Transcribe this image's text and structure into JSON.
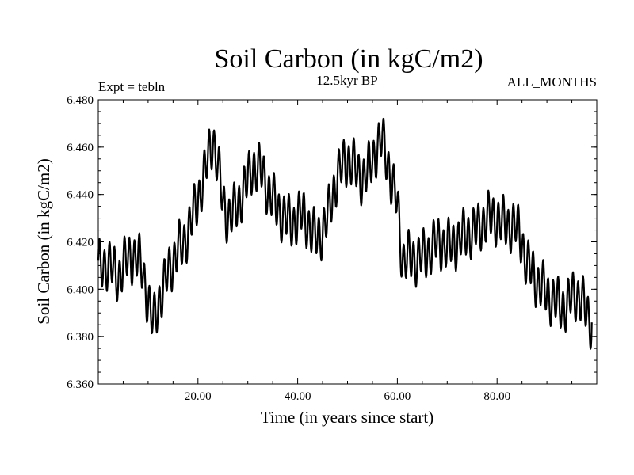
{
  "chart_data": {
    "type": "line",
    "title": "Soil Carbon (in kgC/m2)",
    "subtitle_left": "Expt = tebln",
    "subtitle_center": "12.5kyr BP",
    "subtitle_right": "ALL_MONTHS",
    "xlabel": "Time (in years since start)",
    "ylabel": "Soil Carbon (in kgC/m2)",
    "xlim": [
      0,
      100
    ],
    "ylim": [
      6.36,
      6.48
    ],
    "x_ticks": [
      20,
      40,
      60,
      80
    ],
    "x_tick_labels": [
      "20.00",
      "40.00",
      "60.00",
      "80.00"
    ],
    "y_ticks": [
      6.36,
      6.38,
      6.4,
      6.42,
      6.44,
      6.46,
      6.48
    ],
    "y_tick_labels": [
      "6.360",
      "6.380",
      "6.400",
      "6.420",
      "6.440",
      "6.460",
      "6.480"
    ],
    "grid": false,
    "series": [
      {
        "name": "Soil Carbon",
        "color": "#000000",
        "sampling": "annual mean with seasonal cycle (approx.)",
        "x": [
          0,
          1,
          2,
          3,
          4,
          5,
          6,
          7,
          8,
          9,
          10,
          11,
          12,
          13,
          14,
          15,
          16,
          17,
          18,
          19,
          20,
          21,
          22,
          23,
          24,
          25,
          26,
          27,
          28,
          29,
          30,
          31,
          32,
          33,
          34,
          35,
          36,
          37,
          38,
          39,
          40,
          41,
          42,
          43,
          44,
          45,
          46,
          47,
          48,
          49,
          50,
          51,
          52,
          53,
          54,
          55,
          56,
          57,
          58,
          59,
          60,
          61,
          62,
          63,
          64,
          65,
          66,
          67,
          68,
          69,
          70,
          71,
          72,
          73,
          74,
          75,
          76,
          77,
          78,
          79,
          80,
          81,
          82,
          83,
          84,
          85,
          86,
          87,
          88,
          89,
          90,
          91,
          92,
          93,
          94,
          95,
          96,
          97,
          98,
          99
        ],
        "values": [
          6.409,
          6.41,
          6.411,
          6.408,
          6.405,
          6.41,
          6.413,
          6.414,
          6.413,
          6.407,
          6.395,
          6.385,
          6.394,
          6.4,
          6.407,
          6.412,
          6.417,
          6.418,
          6.425,
          6.431,
          6.438,
          6.446,
          6.455,
          6.464,
          6.452,
          6.437,
          6.43,
          6.432,
          6.436,
          6.441,
          6.446,
          6.452,
          6.451,
          6.449,
          6.442,
          6.438,
          6.434,
          6.431,
          6.429,
          6.428,
          6.43,
          6.432,
          6.428,
          6.423,
          6.422,
          6.425,
          6.43,
          6.44,
          6.448,
          6.452,
          6.455,
          6.453,
          6.449,
          6.447,
          6.449,
          6.455,
          6.46,
          6.463,
          6.455,
          6.443,
          6.437,
          6.412,
          6.413,
          6.413,
          6.413,
          6.414,
          6.415,
          6.418,
          6.42,
          6.419,
          6.418,
          6.419,
          6.42,
          6.422,
          6.424,
          6.424,
          6.425,
          6.428,
          6.43,
          6.43,
          6.43,
          6.428,
          6.427,
          6.427,
          6.426,
          6.42,
          6.41,
          6.408,
          6.403,
          6.401,
          6.398,
          6.396,
          6.394,
          6.393,
          6.393,
          6.397,
          6.398,
          6.395,
          6.39,
          6.386
        ],
        "seasonal_amplitude": 0.009
      }
    ]
  }
}
